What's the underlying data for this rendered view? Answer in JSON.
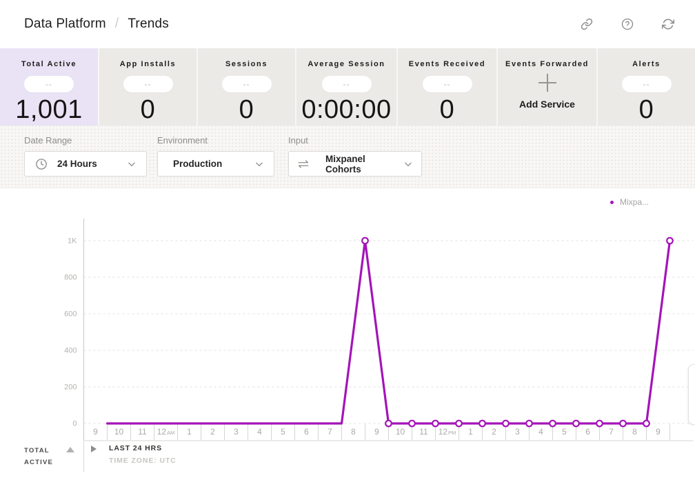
{
  "header": {
    "breadcrumb_parent": "Data Platform",
    "breadcrumb_separator": "/",
    "breadcrumb_current": "Trends",
    "icons": [
      "link-icon",
      "help-icon",
      "refresh-icon"
    ]
  },
  "stats": {
    "cards": [
      {
        "label": "Total Active",
        "pill": "--",
        "value": "1,001",
        "active": true
      },
      {
        "label": "App Installs",
        "pill": "--",
        "value": "0"
      },
      {
        "label": "Sessions",
        "pill": "--",
        "value": "0"
      },
      {
        "label": "Average Session",
        "pill": "--",
        "value": "0:00:00"
      },
      {
        "label": "Events Received",
        "pill": "--",
        "value": "0"
      },
      {
        "label": "Events Forwarded",
        "icon": "plus-icon",
        "action_label": "Add Service"
      },
      {
        "label": "Alerts",
        "pill": "--",
        "value": "0"
      }
    ]
  },
  "filters": {
    "date_range": {
      "label": "Date Range",
      "value": "24 Hours",
      "icon": "clock-icon"
    },
    "environment": {
      "label": "Environment",
      "value": "Production"
    },
    "input": {
      "label": "Input",
      "value": "Mixpanel Cohorts",
      "icon": "swap-arrows-icon"
    }
  },
  "chart_data": {
    "type": "line",
    "title": "",
    "xlabel": "",
    "ylabel": "",
    "x_labels": [
      "9",
      "10",
      "11",
      "12 AM",
      "1",
      "2",
      "3",
      "4",
      "5",
      "6",
      "7",
      "8",
      "9",
      "10",
      "11",
      "12 PM",
      "1",
      "2",
      "3",
      "4",
      "5",
      "6",
      "7",
      "8",
      "9"
    ],
    "series": [
      {
        "name": "Mixpanel Cohorts",
        "color": "#a414b8",
        "values": [
          0,
          0,
          0,
          0,
          0,
          0,
          0,
          0,
          0,
          0,
          0,
          1000,
          0,
          0,
          0,
          0,
          0,
          0,
          0,
          0,
          0,
          0,
          0,
          0,
          1000
        ],
        "markers_from_index": 11
      }
    ],
    "y_ticks": [
      0,
      200,
      400,
      600,
      800,
      1000
    ],
    "y_tick_labels": [
      "0",
      "200",
      "400",
      "600",
      "800",
      "1K"
    ],
    "ylim": [
      0,
      1000
    ],
    "grid": "horizontal-dashed",
    "legend_position": "top-right",
    "legend_label_truncated": "Mixpa..."
  },
  "footer": {
    "row_label_line1": "TOTAL",
    "row_label_line2": "ACTIVE",
    "range_label": "LAST 24 HRS",
    "timezone_label": "TIME ZONE: UTC"
  },
  "colors": {
    "accent": "#a414b8",
    "active_card_bg": "#e9e3f5",
    "card_bg": "#eceae7",
    "grid_line": "#e2e0dd",
    "axis_text": "#b4b2af"
  }
}
